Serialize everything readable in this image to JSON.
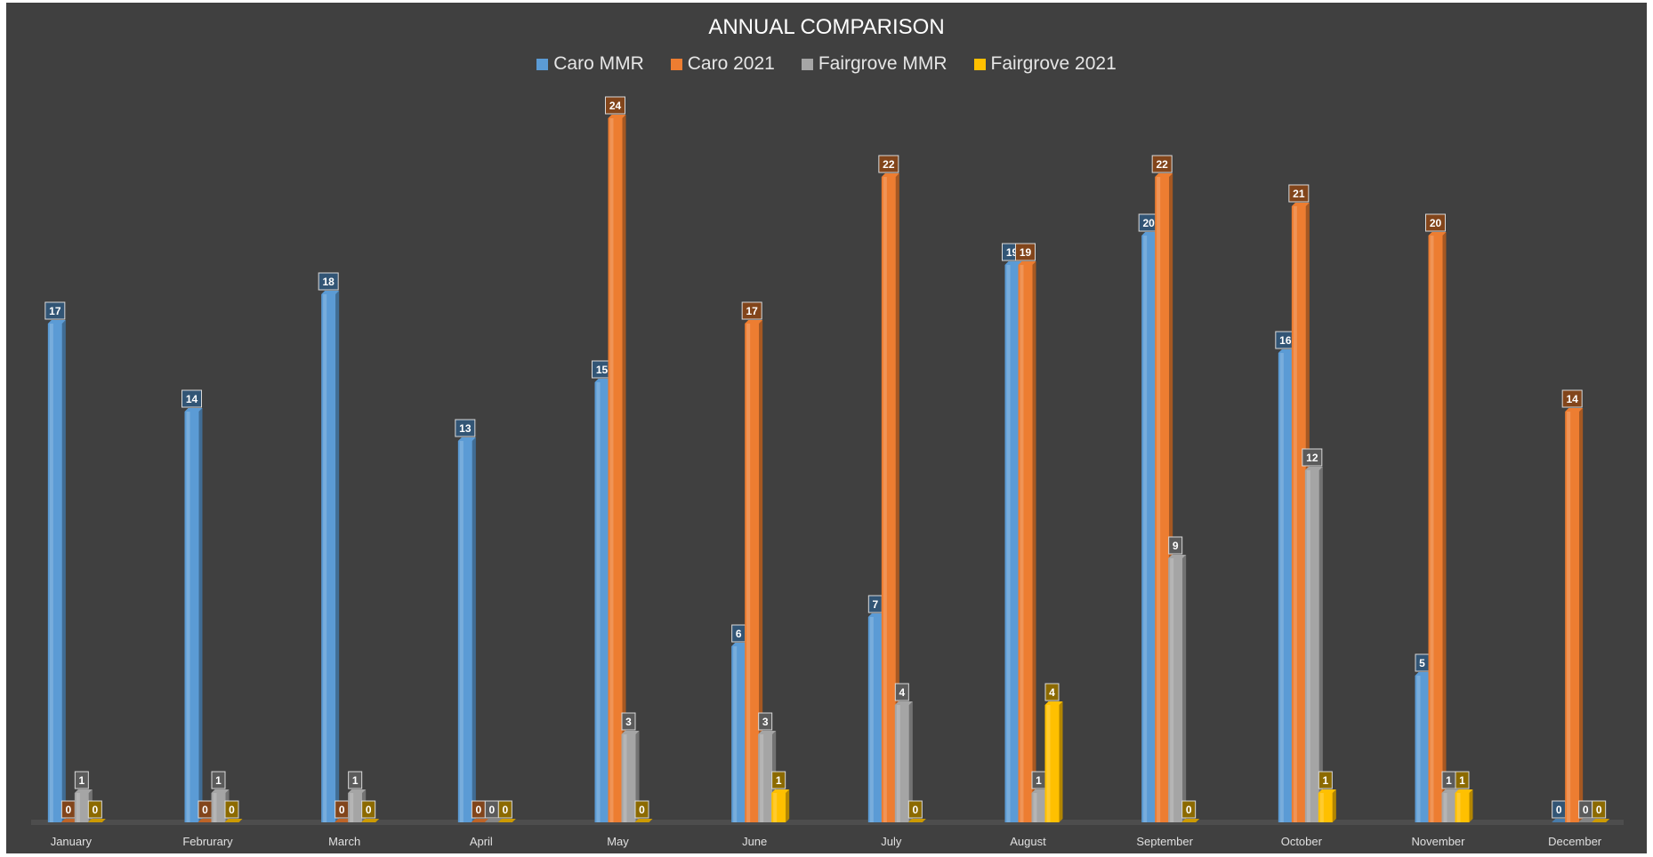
{
  "chart_data": {
    "type": "bar",
    "title": "ANNUAL COMPARISON",
    "xlabel": "",
    "ylabel": "",
    "ylim": [
      0,
      25
    ],
    "grid": false,
    "legend_position": "top",
    "categories": [
      "January",
      "Februrary",
      "March",
      "April",
      "May",
      "June",
      "July",
      "August",
      "September",
      "October",
      "November",
      "December"
    ],
    "series": [
      {
        "name": "Caro MMR",
        "color": "#5b9bd5",
        "values": [
          17,
          14,
          18,
          13,
          15,
          6,
          7,
          19,
          20,
          16,
          5,
          0
        ]
      },
      {
        "name": "Caro 2021",
        "color": "#ed7d31",
        "values": [
          0,
          0,
          0,
          0,
          24,
          17,
          22,
          19,
          22,
          21,
          20,
          14
        ]
      },
      {
        "name": "Fairgrove MMR",
        "color": "#a5a5a5",
        "values": [
          1,
          1,
          1,
          0,
          3,
          3,
          4,
          1,
          9,
          12,
          1,
          0
        ]
      },
      {
        "name": "Fairgrove 2021",
        "color": "#ffc000",
        "values": [
          0,
          0,
          0,
          0,
          0,
          1,
          0,
          4,
          0,
          1,
          1,
          0
        ]
      }
    ],
    "data_labels": [
      [
        "17",
        "0",
        "1",
        "0"
      ],
      [
        "14",
        "0",
        "1",
        "0"
      ],
      [
        "18",
        "0",
        "1",
        "0"
      ],
      [
        "13",
        "0",
        "0",
        "0"
      ],
      [
        "15",
        "24",
        "3",
        "0"
      ],
      [
        "6",
        "17",
        "3",
        "1"
      ],
      [
        "7",
        "22",
        "4",
        "0"
      ],
      [
        "19",
        "19",
        "1",
        "4"
      ],
      [
        "20",
        "22",
        "9",
        "0"
      ],
      [
        "16",
        "21",
        "12",
        "1"
      ],
      [
        "5",
        "20",
        "1",
        "1"
      ],
      [
        "0",
        "14",
        "0",
        "0"
      ]
    ]
  }
}
